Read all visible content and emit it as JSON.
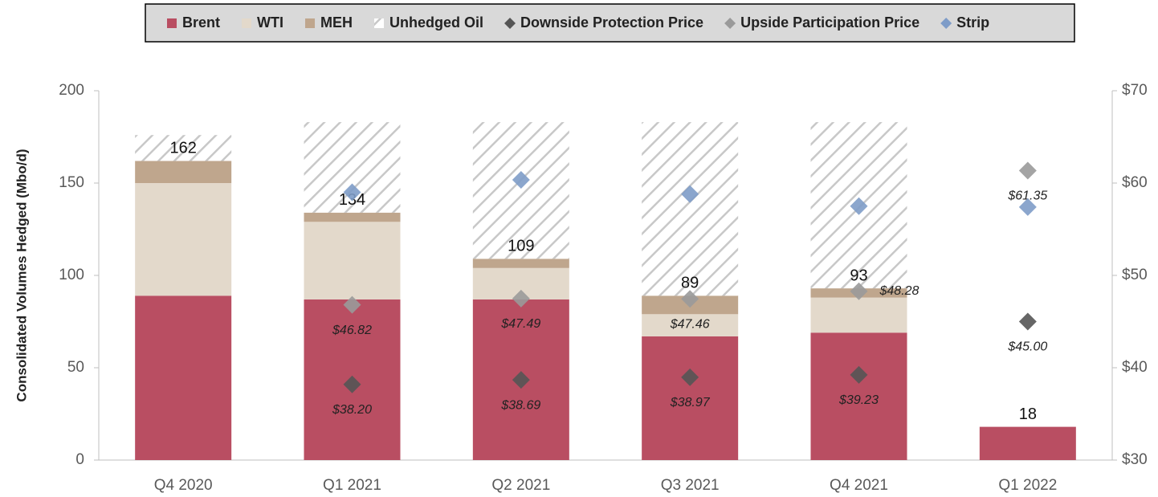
{
  "chart_data": {
    "type": "bar",
    "categories": [
      "Q4 2020",
      "Q1 2021",
      "Q2 2021",
      "Q3 2021",
      "Q4 2021",
      "Q1 2022"
    ],
    "ylabel": "Consolidated Volumes Hedged (Mbo/d)",
    "ylim": [
      0,
      200
    ],
    "yticks": [
      0,
      50,
      100,
      150,
      200
    ],
    "y2lim": [
      30,
      70
    ],
    "y2ticks": [
      {
        "value": 30,
        "label": "$30"
      },
      {
        "value": 40,
        "label": "$40"
      },
      {
        "value": 50,
        "label": "$50"
      },
      {
        "value": 60,
        "label": "$60"
      },
      {
        "value": 70,
        "label": "$70"
      }
    ],
    "totals": [
      162,
      134,
      109,
      89,
      93,
      18
    ],
    "series": [
      {
        "name": "Brent",
        "color": "#b94e62",
        "values": [
          89,
          87,
          87,
          67,
          69,
          18
        ]
      },
      {
        "name": "WTI",
        "color": "#e3d9cb",
        "values": [
          61,
          42,
          17,
          12,
          19,
          0
        ]
      },
      {
        "name": "MEH",
        "color": "#bfa68d",
        "values": [
          12,
          5,
          5,
          10,
          5,
          0
        ]
      },
      {
        "name": "Unhedged Oil",
        "color": "hatch",
        "values": [
          14,
          49,
          74,
          94,
          90,
          0
        ]
      },
      {
        "name": "Downside Protection Price",
        "type": "scatter",
        "axis": "y2",
        "color": "#555555",
        "values": [
          null,
          38.2,
          38.69,
          38.97,
          39.23,
          45.0
        ],
        "value_labels": [
          null,
          "$38.20",
          "$38.69",
          "$38.97",
          "$39.23",
          "$45.00"
        ]
      },
      {
        "name": "Upside Participation Price",
        "type": "scatter",
        "axis": "y2",
        "color": "#9a9a9a",
        "values": [
          null,
          46.82,
          47.49,
          47.46,
          48.28,
          61.35
        ],
        "value_labels": [
          null,
          "$46.82",
          "$47.49",
          "$47.46",
          "$48.28",
          "$61.35"
        ]
      },
      {
        "name": "Strip",
        "type": "scatter",
        "axis": "y2",
        "color": "#7e9cc8",
        "values": [
          null,
          59.0,
          60.35,
          58.8,
          57.5,
          57.4
        ]
      }
    ]
  }
}
